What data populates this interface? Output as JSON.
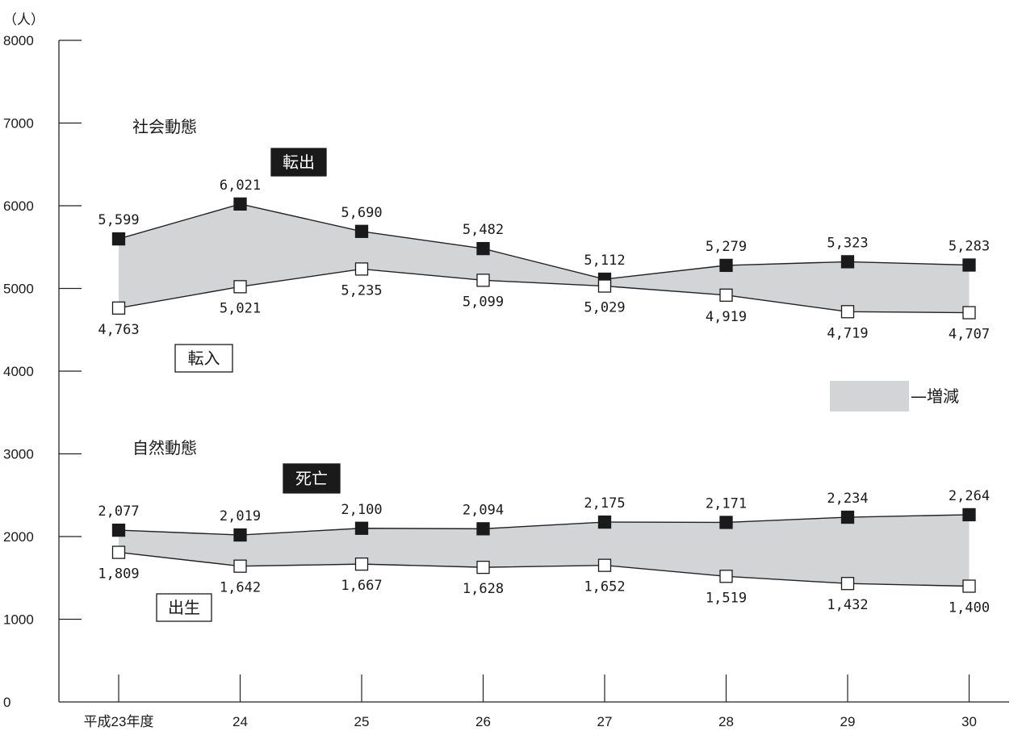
{
  "chart_data": {
    "type": "line",
    "y_unit": "（人）",
    "ylim": [
      0,
      8000
    ],
    "y_ticks": [
      "0",
      "1000",
      "2000",
      "3000",
      "4000",
      "5000",
      "6000",
      "7000",
      "8000"
    ],
    "categories": [
      "平成23年度",
      "24",
      "25",
      "26",
      "27",
      "28",
      "29",
      "30"
    ],
    "legend_fill_label": "—増減",
    "groups": [
      {
        "heading": "社会動態",
        "series": [
          {
            "name": "転出",
            "marker": "filled",
            "values": [
              5599,
              6021,
              5690,
              5482,
              5112,
              5279,
              5323,
              5283
            ],
            "labels": [
              "5,599",
              "6,021",
              "5,690",
              "5,482",
              "5,112",
              "5,279",
              "5,323",
              "5,283"
            ]
          },
          {
            "name": "転入",
            "marker": "open",
            "values": [
              4763,
              5021,
              5235,
              5099,
              5029,
              4919,
              4719,
              4707
            ],
            "labels": [
              "4,763",
              "5,021",
              "5,235",
              "5,099",
              "5,029",
              "4,919",
              "4,719",
              "4,707"
            ]
          }
        ]
      },
      {
        "heading": "自然動態",
        "series": [
          {
            "name": "死亡",
            "marker": "filled",
            "values": [
              2077,
              2019,
              2100,
              2094,
              2175,
              2171,
              2234,
              2264
            ],
            "labels": [
              "2,077",
              "2,019",
              "2,100",
              "2,094",
              "2,175",
              "2,171",
              "2,234",
              "2,264"
            ]
          },
          {
            "name": "出生",
            "marker": "open",
            "values": [
              1809,
              1642,
              1667,
              1628,
              1652,
              1519,
              1432,
              1400
            ],
            "labels": [
              "1,809",
              "1,642",
              "1,667",
              "1,628",
              "1,652",
              "1,519",
              "1,432",
              "1,400"
            ]
          }
        ]
      }
    ],
    "colors": {
      "band": "#d3d4d6",
      "line": "#222222",
      "filled_marker": "#1a1a1a",
      "open_marker": "#ffffff"
    }
  }
}
